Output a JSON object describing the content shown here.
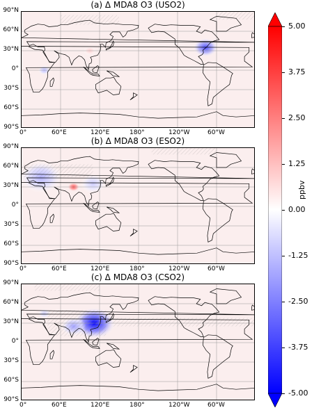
{
  "panels": [
    {
      "id": "a",
      "title": "(a) Δ MDA8 O3 (USO2)",
      "hotspots": [
        {
          "lon": 283,
          "lat": 35,
          "value": -3.5,
          "extent": "medium"
        },
        {
          "lon": 105,
          "lat": 30,
          "value": 0.9,
          "extent": "small"
        },
        {
          "lon": 35,
          "lat": 0,
          "value": -1.3,
          "extent": "small"
        }
      ]
    },
    {
      "id": "b",
      "title": "(b) Δ MDA8 O3 (ESO2)",
      "hotspots": [
        {
          "lon": 30,
          "lat": 45,
          "value": -1.5,
          "extent": "large"
        },
        {
          "lon": 80,
          "lat": 30,
          "value": 3.5,
          "extent": "small"
        },
        {
          "lon": 110,
          "lat": 35,
          "value": -1.0,
          "extent": "medium"
        }
      ]
    },
    {
      "id": "c",
      "title": "(c) Δ MDA8 O3 (CSO2)",
      "hotspots": [
        {
          "lon": 112,
          "lat": 30,
          "value": -5.0,
          "extent": "large"
        },
        {
          "lon": 80,
          "lat": 25,
          "value": -1.8,
          "extent": "medium"
        },
        {
          "lon": 35,
          "lat": 45,
          "value": -0.9,
          "extent": "small"
        }
      ]
    }
  ],
  "latitude_labels": [
    "90°N",
    "60°N",
    "30°N",
    "0°",
    "30°S",
    "60°S",
    "90°S"
  ],
  "longitude_labels": [
    "0°",
    "60°E",
    "120°E",
    "180°",
    "120°W",
    "60°W"
  ],
  "colorbar": {
    "ticks": [
      "5.00",
      "3.75",
      "2.50",
      "1.25",
      "0.00",
      "-1.25",
      "-2.50",
      "-3.75",
      "-5.00"
    ],
    "unit": "ppbv",
    "range": [
      -5,
      5
    ],
    "colors": {
      "max": "#ff0000",
      "mid": "#ffffff",
      "min": "#0000ff"
    },
    "colormap": "bwr"
  },
  "style": {
    "land_outline": "#000000",
    "background_tint": "#fbeeee",
    "grid": "#888888"
  }
}
